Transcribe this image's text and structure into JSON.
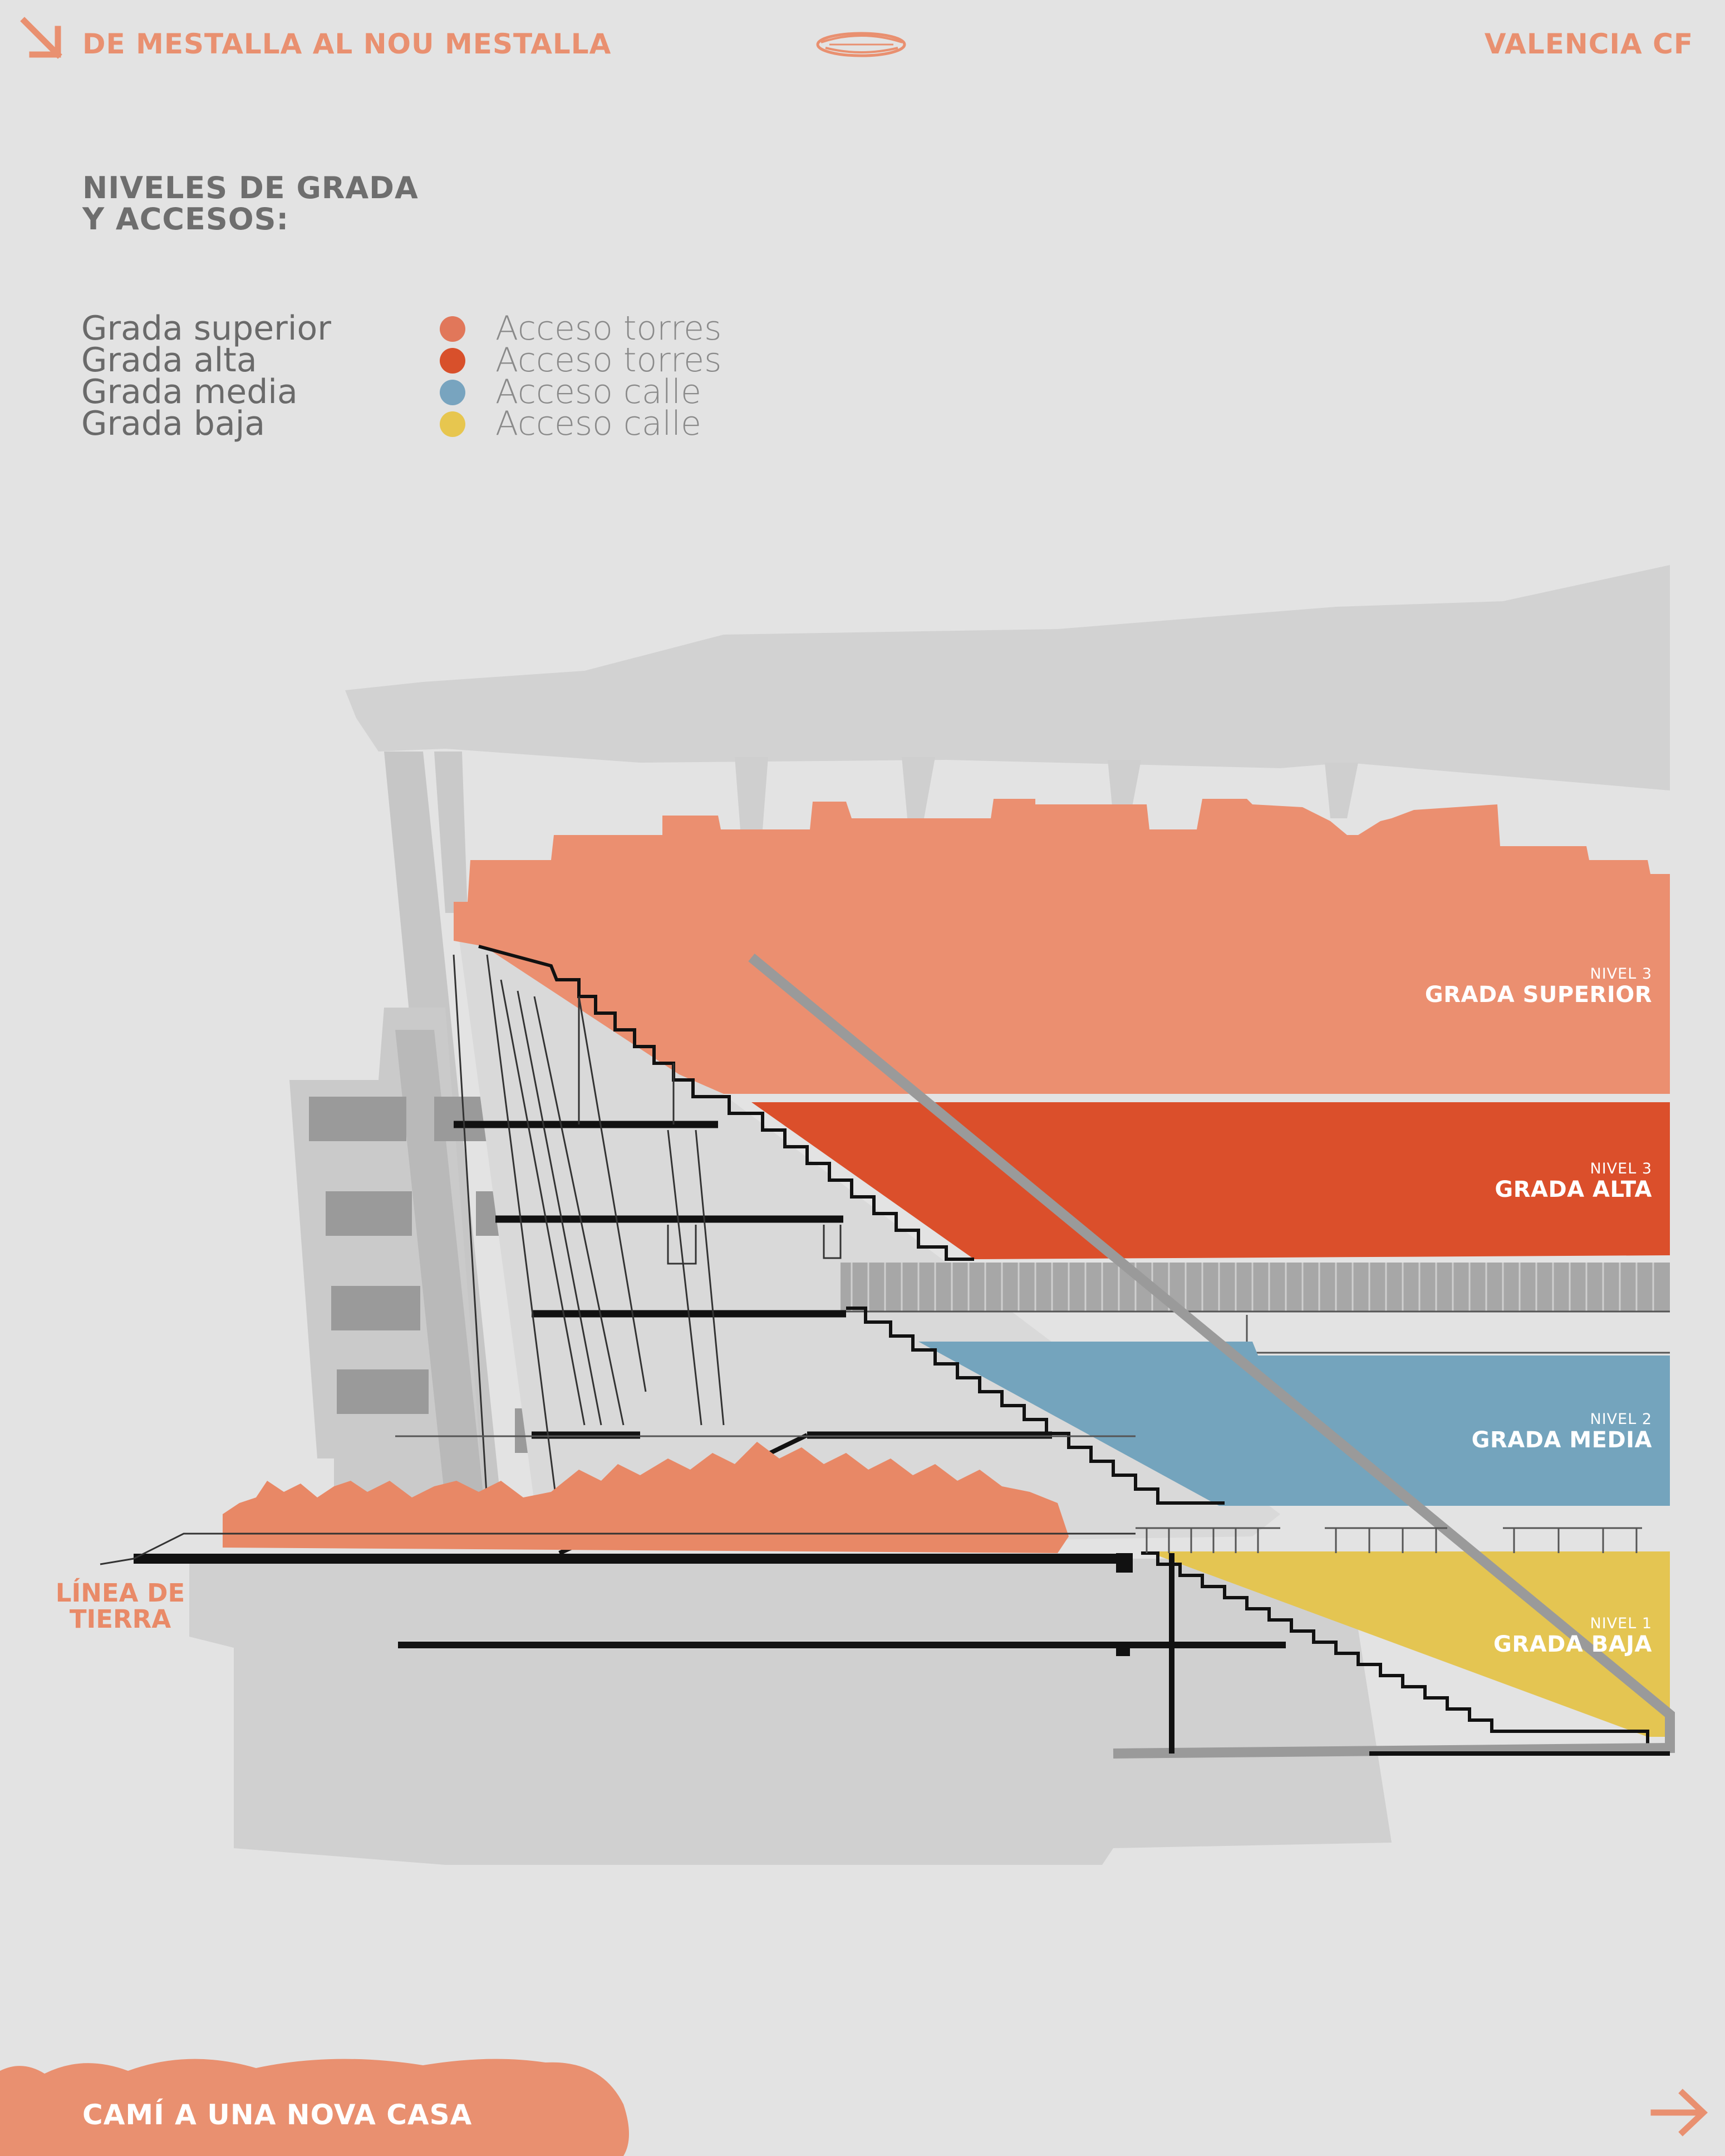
{
  "header": {
    "title": "DE MESTALLA AL NOU MESTALLA",
    "club": "VALENCIA CF"
  },
  "heading": {
    "line1": "NIVELES DE GRADA",
    "line2": "Y ACCESOS:"
  },
  "legend": [
    {
      "tier": "Grada superior",
      "access": "Acceso torres",
      "color": "#e1775a"
    },
    {
      "tier": "Grada alta",
      "access": "Acceso torres",
      "color": "#d8502b"
    },
    {
      "tier": "Grada media",
      "access": "Acceso calle",
      "color": "#78a4bf"
    },
    {
      "tier": "Grada baja",
      "access": "Acceso calle",
      "color": "#e7c64f"
    }
  ],
  "levels": [
    {
      "nivel": "NIVEL 3",
      "name": "GRADA SUPERIOR",
      "color": "#eb8f70"
    },
    {
      "nivel": "NIVEL 3",
      "name": "GRADA ALTA",
      "color": "#db4f2b"
    },
    {
      "nivel": "NIVEL 2",
      "name": "GRADA MEDIA",
      "color": "#74a4bd"
    },
    {
      "nivel": "NIVEL 1",
      "name": "GRADA BAJA",
      "color": "#e4c552"
    }
  ],
  "ground_label": {
    "line1": "LÍNEA DE",
    "line2": "TIERRA"
  },
  "footer": {
    "label": "CAMÍ A UNA NOVA CASA"
  },
  "icons": {
    "top_left": "arrow-down-right-icon",
    "center": "stadium-logo-icon",
    "bottom_right": "arrow-right-icon"
  }
}
